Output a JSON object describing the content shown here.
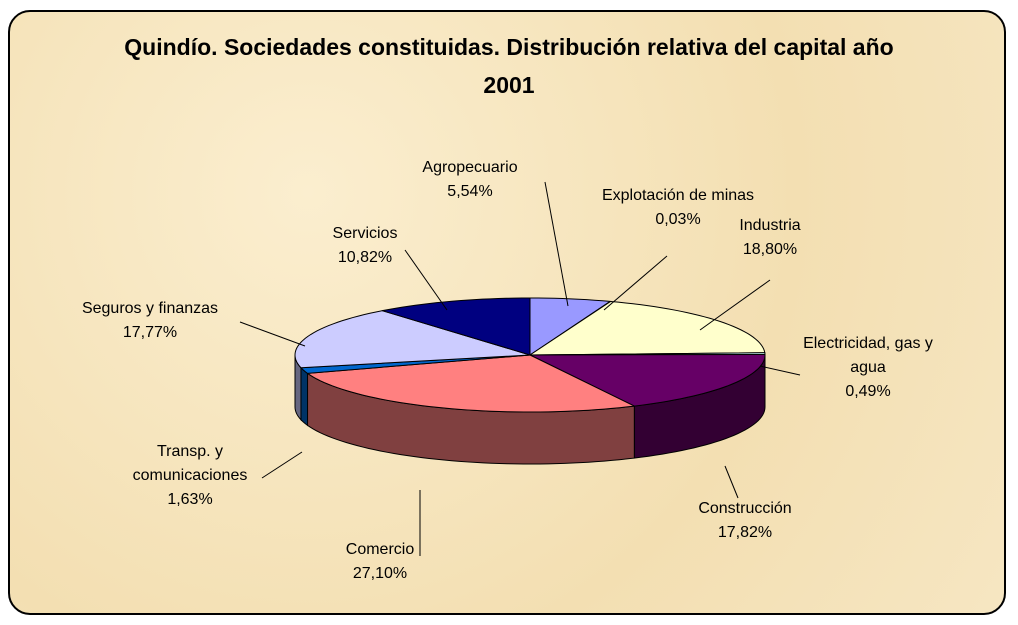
{
  "chart_data": {
    "type": "pie3d",
    "title": "Quindío. Sociedades constituidas. Distribución relativa del capital año 2001",
    "categories": [
      "Agropecuario",
      "Explotación de minas",
      "Industria",
      "Electricidad, gas y agua",
      "Construcción",
      "Comercio",
      "Transp. y comunicaciones",
      "Seguros y finanzas",
      "Servicios"
    ],
    "values": [
      5.54,
      0.03,
      18.8,
      0.49,
      17.82,
      27.1,
      1.63,
      17.77,
      10.82
    ],
    "value_labels": [
      "5,54%",
      "0,03%",
      "18,80%",
      "0,49%",
      "17,82%",
      "27,10%",
      "1,63%",
      "17,77%",
      "10,82%"
    ],
    "colors": [
      "#9999ff",
      "#993366",
      "#ffffcc",
      "#ccffff",
      "#660066",
      "#ff8080",
      "#0066cc",
      "#ccccff",
      "#000080"
    ]
  }
}
